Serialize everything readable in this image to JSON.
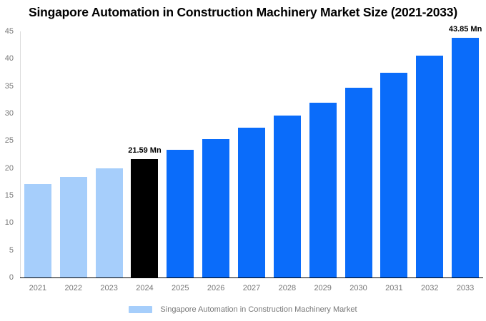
{
  "chart_data": {
    "type": "bar",
    "title": "Singapore Automation in Construction Machinery Market Size (2021-2033)",
    "categories": [
      "2021",
      "2022",
      "2023",
      "2024",
      "2025",
      "2026",
      "2027",
      "2028",
      "2029",
      "2030",
      "2031",
      "2032",
      "2033"
    ],
    "values": [
      17.04,
      18.44,
      19.95,
      21.59,
      23.36,
      25.28,
      27.35,
      29.59,
      32.02,
      34.64,
      37.48,
      40.56,
      43.85
    ],
    "unit": "Mn",
    "xlabel": "",
    "ylabel": "",
    "ylim": [
      0,
      45
    ],
    "yticks": [
      0,
      5,
      10,
      15,
      20,
      25,
      30,
      35,
      40,
      45
    ],
    "grid": false,
    "bar_colors": [
      "#A6CEFB",
      "#A6CEFB",
      "#A6CEFB",
      "#000000",
      "#0A6CFA",
      "#0A6CFA",
      "#0A6CFA",
      "#0A6CFA",
      "#0A6CFA",
      "#0A6CFA",
      "#0A6CFA",
      "#0A6CFA",
      "#0A6CFA"
    ],
    "annotations": [
      {
        "category": "2024",
        "text": "21.59 Mn"
      },
      {
        "category": "2033",
        "text": "43.85 Mn"
      }
    ],
    "legend": {
      "position": "bottom",
      "label": "Singapore Automation in Construction Machinery Market",
      "swatch_color": "#A6CEFB"
    },
    "axis_colors": {
      "tick_label": "#777777",
      "baseline": "#000000",
      "y_axis_line": "#DCDCDC"
    }
  }
}
